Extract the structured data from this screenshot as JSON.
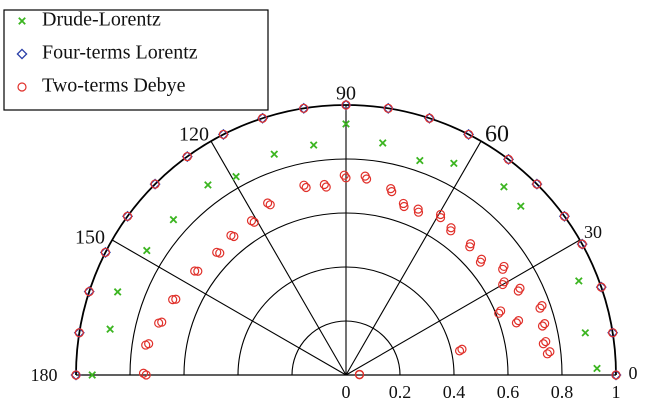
{
  "chart_data": {
    "type": "scatter",
    "coordinate_system": "polar",
    "angle_range_deg": [
      0,
      180
    ],
    "radius_range": [
      0,
      1
    ],
    "radial_rings": [
      0.2,
      0.4,
      0.6,
      0.8,
      1.0
    ],
    "radial_tick_labels": [
      "0",
      "0.2",
      "0.4",
      "0.6",
      "0.8",
      "1"
    ],
    "angle_spokes_deg": [
      30,
      60,
      90,
      120,
      150
    ],
    "angle_tick_labels": [
      {
        "angle": 0,
        "text": "0"
      },
      {
        "angle": 30,
        "text": "30"
      },
      {
        "angle": 60,
        "text": "60"
      },
      {
        "angle": 90,
        "text": "90"
      },
      {
        "angle": 120,
        "text": "120"
      },
      {
        "angle": 150,
        "text": "150"
      },
      {
        "angle": 180,
        "text": "180"
      }
    ],
    "legend_position": "top-left",
    "grid": true,
    "series": [
      {
        "name": "Drude-Lorentz",
        "marker": "x",
        "color": "#3cb521",
        "points": [
          {
            "theta": 1.5,
            "r": 0.93
          },
          {
            "theta": 10,
            "r": 0.9
          },
          {
            "theta": 22,
            "r": 0.93
          },
          {
            "theta": 44,
            "r": 0.9
          },
          {
            "theta": 50,
            "r": 0.91
          },
          {
            "theta": 63,
            "r": 0.88
          },
          {
            "theta": 71,
            "r": 0.84
          },
          {
            "theta": 81,
            "r": 0.87
          },
          {
            "theta": 90,
            "r": 0.93
          },
          {
            "theta": 98,
            "r": 0.86
          },
          {
            "theta": 108,
            "r": 0.86
          },
          {
            "theta": 119,
            "r": 0.84
          },
          {
            "theta": 126,
            "r": 0.87
          },
          {
            "theta": 138,
            "r": 0.86
          },
          {
            "theta": 148,
            "r": 0.87
          },
          {
            "theta": 160,
            "r": 0.9
          },
          {
            "theta": 169,
            "r": 0.89
          },
          {
            "theta": 180,
            "r": 0.94
          }
        ]
      },
      {
        "name": "Four-terms Lorentz",
        "marker": "diamond",
        "color": "#2a3fa8",
        "points": [
          {
            "theta": 0,
            "r": 1.0
          },
          {
            "theta": 9,
            "r": 1.0
          },
          {
            "theta": 19,
            "r": 1.0
          },
          {
            "theta": 29,
            "r": 1.0
          },
          {
            "theta": 36,
            "r": 1.0
          },
          {
            "theta": 45,
            "r": 1.0
          },
          {
            "theta": 53,
            "r": 1.0
          },
          {
            "theta": 63,
            "r": 1.0
          },
          {
            "theta": 72,
            "r": 1.0
          },
          {
            "theta": 81,
            "r": 1.0
          },
          {
            "theta": 90,
            "r": 1.0
          },
          {
            "theta": 99,
            "r": 1.0
          },
          {
            "theta": 108,
            "r": 1.0
          },
          {
            "theta": 117,
            "r": 1.0
          },
          {
            "theta": 126,
            "r": 1.0
          },
          {
            "theta": 135,
            "r": 1.0
          },
          {
            "theta": 144,
            "r": 1.0
          },
          {
            "theta": 153,
            "r": 1.0
          },
          {
            "theta": 162,
            "r": 1.0
          },
          {
            "theta": 171,
            "r": 1.0
          },
          {
            "theta": 180,
            "r": 1.0
          }
        ]
      },
      {
        "name": "Two-terms Debye",
        "marker": "circle",
        "color": "#e0302a",
        "points": [
          {
            "theta": 0,
            "r": 1.0
          },
          {
            "theta": 9,
            "r": 1.0
          },
          {
            "theta": 19,
            "r": 1.0
          },
          {
            "theta": 29,
            "r": 1.0
          },
          {
            "theta": 36,
            "r": 1.0
          },
          {
            "theta": 45,
            "r": 1.0
          },
          {
            "theta": 53,
            "r": 1.0
          },
          {
            "theta": 63,
            "r": 1.0
          },
          {
            "theta": 72,
            "r": 1.0
          },
          {
            "theta": 81,
            "r": 1.0
          },
          {
            "theta": 90,
            "r": 1.0
          },
          {
            "theta": 99,
            "r": 1.0
          },
          {
            "theta": 108,
            "r": 1.0
          },
          {
            "theta": 117,
            "r": 1.0
          },
          {
            "theta": 126,
            "r": 1.0
          },
          {
            "theta": 135,
            "r": 1.0
          },
          {
            "theta": 144,
            "r": 1.0
          },
          {
            "theta": 153,
            "r": 1.0
          },
          {
            "theta": 162,
            "r": 1.0
          },
          {
            "theta": 171,
            "r": 1.0
          },
          {
            "theta": 180,
            "r": 1.0
          },
          {
            "theta": 1,
            "r": 0.05
          },
          {
            "theta": 3,
            "r": 0.05
          },
          {
            "theta": 6,
            "r": 0.75
          },
          {
            "theta": 6.5,
            "r": 0.76
          },
          {
            "theta": 9,
            "r": 0.74
          },
          {
            "theta": 9.5,
            "r": 0.75
          },
          {
            "theta": 12,
            "r": 0.43
          },
          {
            "theta": 12.5,
            "r": 0.44
          },
          {
            "theta": 14,
            "r": 0.75
          },
          {
            "theta": 14.5,
            "r": 0.76
          },
          {
            "theta": 17,
            "r": 0.66
          },
          {
            "theta": 17.5,
            "r": 0.67
          },
          {
            "theta": 19,
            "r": 0.76
          },
          {
            "theta": 19.5,
            "r": 0.77
          },
          {
            "theta": 22,
            "r": 0.61
          },
          {
            "theta": 22.5,
            "r": 0.62
          },
          {
            "theta": 26,
            "r": 0.71
          },
          {
            "theta": 26.5,
            "r": 0.72
          },
          {
            "theta": 30,
            "r": 0.67
          },
          {
            "theta": 30.5,
            "r": 0.68
          },
          {
            "theta": 34,
            "r": 0.7
          },
          {
            "theta": 34.5,
            "r": 0.71
          },
          {
            "theta": 40,
            "r": 0.65
          },
          {
            "theta": 40.5,
            "r": 0.66
          },
          {
            "theta": 46,
            "r": 0.66
          },
          {
            "theta": 46.5,
            "r": 0.67
          },
          {
            "theta": 54,
            "r": 0.66
          },
          {
            "theta": 54.5,
            "r": 0.67
          },
          {
            "theta": 59,
            "r": 0.68
          },
          {
            "theta": 59.5,
            "r": 0.69
          },
          {
            "theta": 66,
            "r": 0.66
          },
          {
            "theta": 66.5,
            "r": 0.67
          },
          {
            "theta": 71,
            "r": 0.66
          },
          {
            "theta": 71.5,
            "r": 0.67
          },
          {
            "theta": 76,
            "r": 0.7
          },
          {
            "theta": 76.5,
            "r": 0.71
          },
          {
            "theta": 84,
            "r": 0.73
          },
          {
            "theta": 84.5,
            "r": 0.74
          },
          {
            "theta": 90,
            "r": 0.73
          },
          {
            "theta": 90.5,
            "r": 0.74
          },
          {
            "theta": 96,
            "r": 0.7
          },
          {
            "theta": 96.5,
            "r": 0.71
          },
          {
            "theta": 102,
            "r": 0.71
          },
          {
            "theta": 102.5,
            "r": 0.72
          },
          {
            "theta": 114,
            "r": 0.69
          },
          {
            "theta": 114.5,
            "r": 0.7
          },
          {
            "theta": 121,
            "r": 0.66
          },
          {
            "theta": 121.5,
            "r": 0.67
          },
          {
            "theta": 129,
            "r": 0.66
          },
          {
            "theta": 129.5,
            "r": 0.67
          },
          {
            "theta": 136,
            "r": 0.65
          },
          {
            "theta": 136.5,
            "r": 0.66
          },
          {
            "theta": 145,
            "r": 0.67
          },
          {
            "theta": 145.5,
            "r": 0.68
          },
          {
            "theta": 156,
            "r": 0.69
          },
          {
            "theta": 156.5,
            "r": 0.7
          },
          {
            "theta": 164,
            "r": 0.71
          },
          {
            "theta": 164.5,
            "r": 0.72
          },
          {
            "theta": 171,
            "r": 0.74
          },
          {
            "theta": 171.5,
            "r": 0.75
          },
          {
            "theta": 180,
            "r": 0.74
          },
          {
            "theta": 179.5,
            "r": 0.75
          }
        ]
      }
    ]
  }
}
